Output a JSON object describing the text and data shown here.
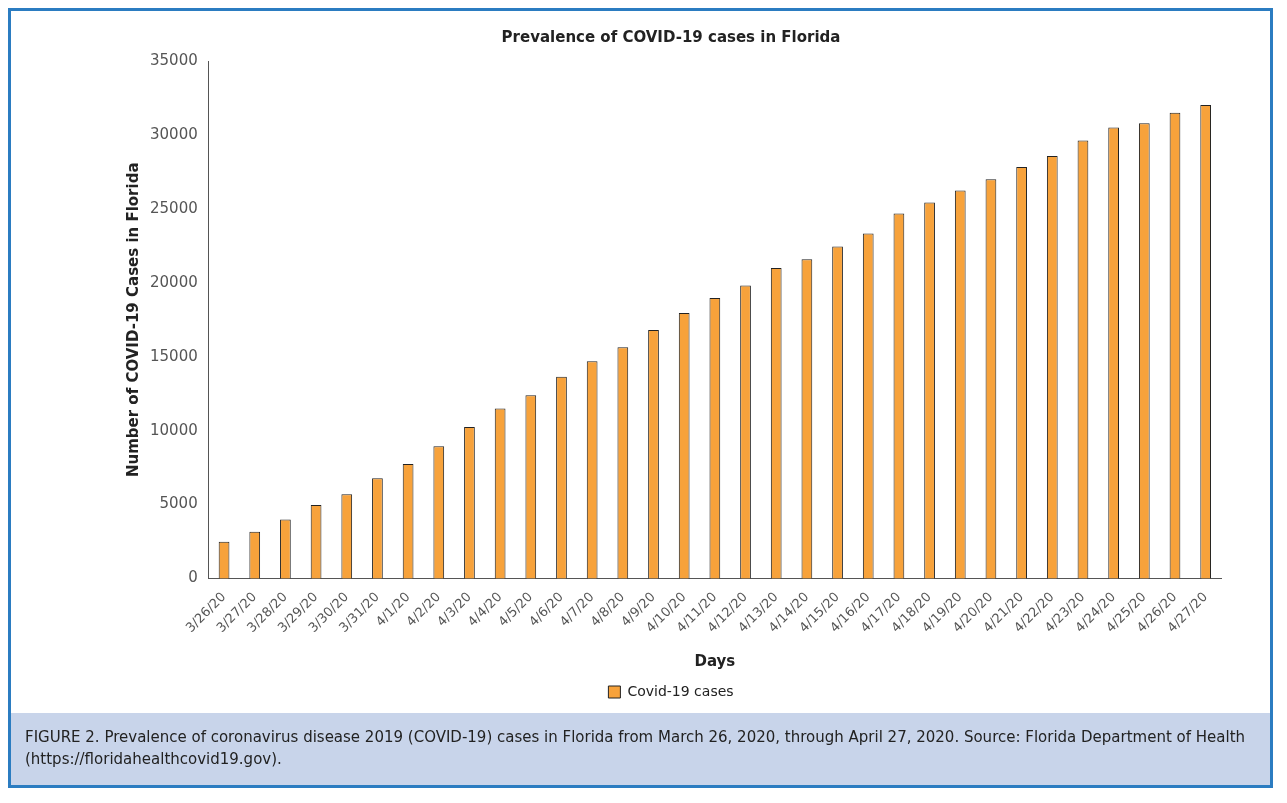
{
  "chart_data": {
    "type": "bar",
    "title": "Prevalence of COVID-19 cases in Florida",
    "xlabel": "Days",
    "ylabel": "Number of COVID-19 Cases in Florida",
    "categories": [
      "3/26/20",
      "3/27/20",
      "3/28/20",
      "3/29/20",
      "3/30/20",
      "3/31/20",
      "4/1/20",
      "4/2/20",
      "4/3/20",
      "4/4/20",
      "4/5/20",
      "4/6/20",
      "4/7/20",
      "4/8/20",
      "4/9/20",
      "4/10/20",
      "4/11/20",
      "4/12/20",
      "4/13/20",
      "4/14/20",
      "4/15/20",
      "4/16/20",
      "4/17/20",
      "4/18/20",
      "4/19/20",
      "4/20/20",
      "4/21/20",
      "4/22/20",
      "4/23/20",
      "4/24/20",
      "4/25/20",
      "4/26/20",
      "4/27/20"
    ],
    "series": [
      {
        "name": "Covid-19 cases",
        "color": "#f7a23b",
        "values": [
          2480,
          3160,
          4000,
          4980,
          5700,
          6790,
          7740,
          8950,
          10240,
          11500,
          12400,
          13640,
          14690,
          15640,
          16800,
          17950,
          18980,
          19810,
          21000,
          21590,
          22450,
          23340,
          24690,
          25430,
          26240,
          27000,
          27830,
          28570,
          29620,
          30500,
          30790,
          31500,
          32020
        ]
      }
    ],
    "ylim": [
      0,
      35000
    ],
    "yticks": [
      0,
      5000,
      10000,
      15000,
      20000,
      25000,
      30000,
      35000
    ],
    "grid": false,
    "legend": "bottom",
    "annotations": [
      "FIGURE 2. Prevalence of coronavirus disease 2019 (COVID-19) cases in Florida from March 26, 2020, through April 27, 2020. Source: Florida Department of Health (https://floridahealthcovid19.gov)."
    ]
  }
}
